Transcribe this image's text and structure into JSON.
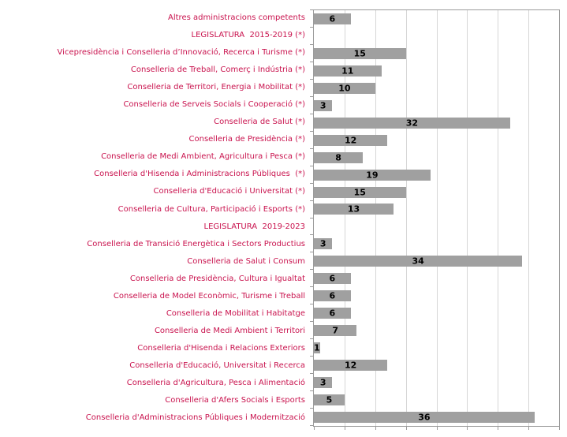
{
  "chart_data": {
    "type": "bar",
    "orientation": "horizontal",
    "title": "",
    "xlabel": "",
    "ylabel": "",
    "xlim": [
      0,
      40
    ],
    "gridline_step": 5,
    "grid": true,
    "legend": false,
    "bar_color": "#a0a0a0",
    "label_color": "#c9134e",
    "value_label_color": "#000000",
    "gridline_color": "#d6d6d6",
    "axis_color": "#9b9b9b",
    "categories": [
      "Altres administracions competents",
      "LEGISLATURA  2015-2019 (*)",
      "Vicepresidència i Conselleria d’Innovació, Recerca i Turisme (*)",
      "Conselleria de Treball, Comerç i Indústria (*)",
      "Conselleria de Territori, Energia i Mobilitat (*)",
      "Conselleria de Serveis Socials i Cooperació (*)",
      "Conselleria de Salut (*)",
      "Conselleria de Presidència (*)",
      "Conselleria de Medi Ambient, Agricultura i Pesca (*)",
      "Conselleria d'Hisenda i Administracions Públiques  (*)",
      "Conselleria d'Educació i Universitat (*)",
      "Conselleria de Cultura, Participació i Esports (*)",
      "LEGISLATURA  2019-2023",
      "Conselleria de Transició Energètica i Sectors Productius",
      "Conselleria de Salut i Consum",
      "Conselleria de Presidència, Cultura i Igualtat",
      "Conselleria de Model Econòmic, Turisme i Treball",
      "Conselleria de Mobilitat i Habitatge",
      "Conselleria de Medi Ambient i Territori",
      "Conselleria d'Hisenda i Relacions Exteriors",
      "Conselleria d'Educació, Universitat i Recerca",
      "Conselleria d'Agricultura, Pesca i Alimentació",
      "Conselleria d'Afers Socials i Esports",
      "Conselleria d'Administracions Públiques i Modernització"
    ],
    "values": [
      6,
      null,
      15,
      11,
      10,
      3,
      32,
      12,
      8,
      19,
      15,
      13,
      null,
      3,
      34,
      6,
      6,
      6,
      7,
      1,
      12,
      3,
      5,
      36
    ]
  }
}
